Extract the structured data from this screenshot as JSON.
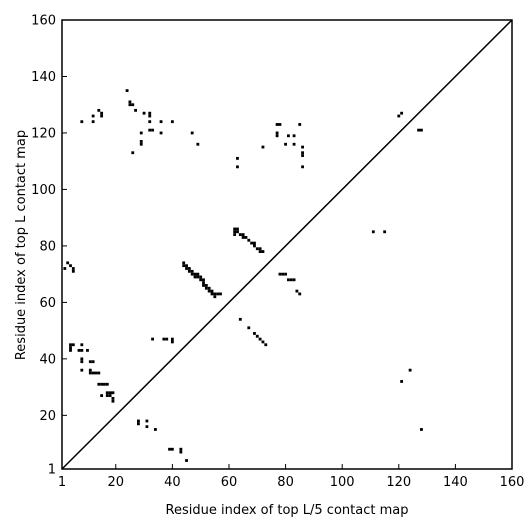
{
  "chart_data": {
    "type": "scatter",
    "xlabel": "Residue index of top L/5 contact map",
    "ylabel": "Residue index of top L contact map",
    "xlim": [
      1,
      160
    ],
    "ylim": [
      1,
      160
    ],
    "x_ticks": [
      1,
      20,
      40,
      60,
      80,
      100,
      120,
      140,
      160
    ],
    "y_ticks": [
      1,
      20,
      40,
      60,
      80,
      100,
      120,
      140,
      160
    ],
    "diagonal": true,
    "grid": false,
    "colors": {
      "points": "#000000",
      "axes": "#000000",
      "background": "#ffffff"
    },
    "points": [
      [
        24,
        135
      ],
      [
        25,
        131
      ],
      [
        26,
        130
      ],
      [
        25,
        130
      ],
      [
        27,
        128
      ],
      [
        30,
        127
      ],
      [
        32,
        126
      ],
      [
        32,
        127
      ],
      [
        14,
        128
      ],
      [
        15,
        127
      ],
      [
        15,
        126
      ],
      [
        12,
        126
      ],
      [
        12,
        124
      ],
      [
        8,
        124
      ],
      [
        32,
        124
      ],
      [
        36,
        124
      ],
      [
        40,
        124
      ],
      [
        32,
        121
      ],
      [
        33,
        121
      ],
      [
        29,
        120
      ],
      [
        36,
        120
      ],
      [
        47,
        120
      ],
      [
        29,
        117
      ],
      [
        29,
        116
      ],
      [
        49,
        116
      ],
      [
        26,
        113
      ],
      [
        77,
        123
      ],
      [
        78,
        123
      ],
      [
        85,
        123
      ],
      [
        77,
        120
      ],
      [
        77,
        119
      ],
      [
        81,
        119
      ],
      [
        83,
        119
      ],
      [
        80,
        116
      ],
      [
        83,
        116
      ],
      [
        86,
        115
      ],
      [
        86,
        113
      ],
      [
        86,
        112
      ],
      [
        72,
        115
      ],
      [
        63,
        111
      ],
      [
        63,
        108
      ],
      [
        86,
        108
      ],
      [
        120,
        126
      ],
      [
        121,
        127
      ],
      [
        127,
        121
      ],
      [
        128,
        121
      ],
      [
        111,
        85
      ],
      [
        115,
        85
      ],
      [
        62,
        84
      ],
      [
        62,
        85
      ],
      [
        62,
        86
      ],
      [
        63,
        85
      ],
      [
        63,
        86
      ],
      [
        64,
        84
      ],
      [
        65,
        84
      ],
      [
        65,
        83
      ],
      [
        66,
        83
      ],
      [
        67,
        82
      ],
      [
        68,
        81
      ],
      [
        69,
        81
      ],
      [
        69,
        80
      ],
      [
        70,
        79
      ],
      [
        71,
        79
      ],
      [
        71,
        78
      ],
      [
        72,
        78
      ],
      [
        44,
        74
      ],
      [
        44,
        73
      ],
      [
        45,
        73
      ],
      [
        45,
        72
      ],
      [
        46,
        72
      ],
      [
        46,
        71
      ],
      [
        47,
        71
      ],
      [
        47,
        70
      ],
      [
        48,
        70
      ],
      [
        48,
        69
      ],
      [
        49,
        70
      ],
      [
        49,
        69
      ],
      [
        50,
        69
      ],
      [
        50,
        68
      ],
      [
        51,
        68
      ],
      [
        51,
        67
      ],
      [
        51,
        66
      ],
      [
        52,
        66
      ],
      [
        52,
        65
      ],
      [
        53,
        65
      ],
      [
        53,
        64
      ],
      [
        54,
        64
      ],
      [
        54,
        63
      ],
      [
        55,
        63
      ],
      [
        55,
        62
      ],
      [
        56,
        63
      ],
      [
        57,
        63
      ],
      [
        78,
        70
      ],
      [
        79,
        70
      ],
      [
        80,
        70
      ],
      [
        81,
        68
      ],
      [
        82,
        68
      ],
      [
        83,
        68
      ],
      [
        84,
        64
      ],
      [
        85,
        63
      ],
      [
        2,
        72
      ],
      [
        3,
        74
      ],
      [
        4,
        73
      ],
      [
        5,
        72
      ],
      [
        5,
        71
      ],
      [
        64,
        54
      ],
      [
        67,
        51
      ],
      [
        69,
        49
      ],
      [
        70,
        48
      ],
      [
        71,
        47
      ],
      [
        72,
        46
      ],
      [
        73,
        45
      ],
      [
        4,
        45
      ],
      [
        4,
        44
      ],
      [
        4,
        43
      ],
      [
        5,
        45
      ],
      [
        8,
        45
      ],
      [
        8,
        43
      ],
      [
        7,
        43
      ],
      [
        10,
        43
      ],
      [
        8,
        40
      ],
      [
        8,
        39
      ],
      [
        8,
        36
      ],
      [
        11,
        39
      ],
      [
        12,
        39
      ],
      [
        11,
        36
      ],
      [
        11,
        35
      ],
      [
        12,
        35
      ],
      [
        13,
        35
      ],
      [
        14,
        35
      ],
      [
        14,
        31
      ],
      [
        15,
        31
      ],
      [
        16,
        31
      ],
      [
        17,
        31
      ],
      [
        17,
        28
      ],
      [
        18,
        28
      ],
      [
        19,
        28
      ],
      [
        18,
        27
      ],
      [
        19,
        26
      ],
      [
        19,
        25
      ],
      [
        17,
        27
      ],
      [
        15,
        27
      ],
      [
        33,
        47
      ],
      [
        37,
        47
      ],
      [
        38,
        47
      ],
      [
        40,
        47
      ],
      [
        40,
        46
      ],
      [
        28,
        18
      ],
      [
        28,
        17
      ],
      [
        31,
        18
      ],
      [
        31,
        16
      ],
      [
        34,
        15
      ],
      [
        39,
        8
      ],
      [
        40,
        8
      ],
      [
        43,
        8
      ],
      [
        43,
        7
      ],
      [
        45,
        4
      ],
      [
        121,
        32
      ],
      [
        124,
        36
      ],
      [
        128,
        15
      ]
    ]
  }
}
